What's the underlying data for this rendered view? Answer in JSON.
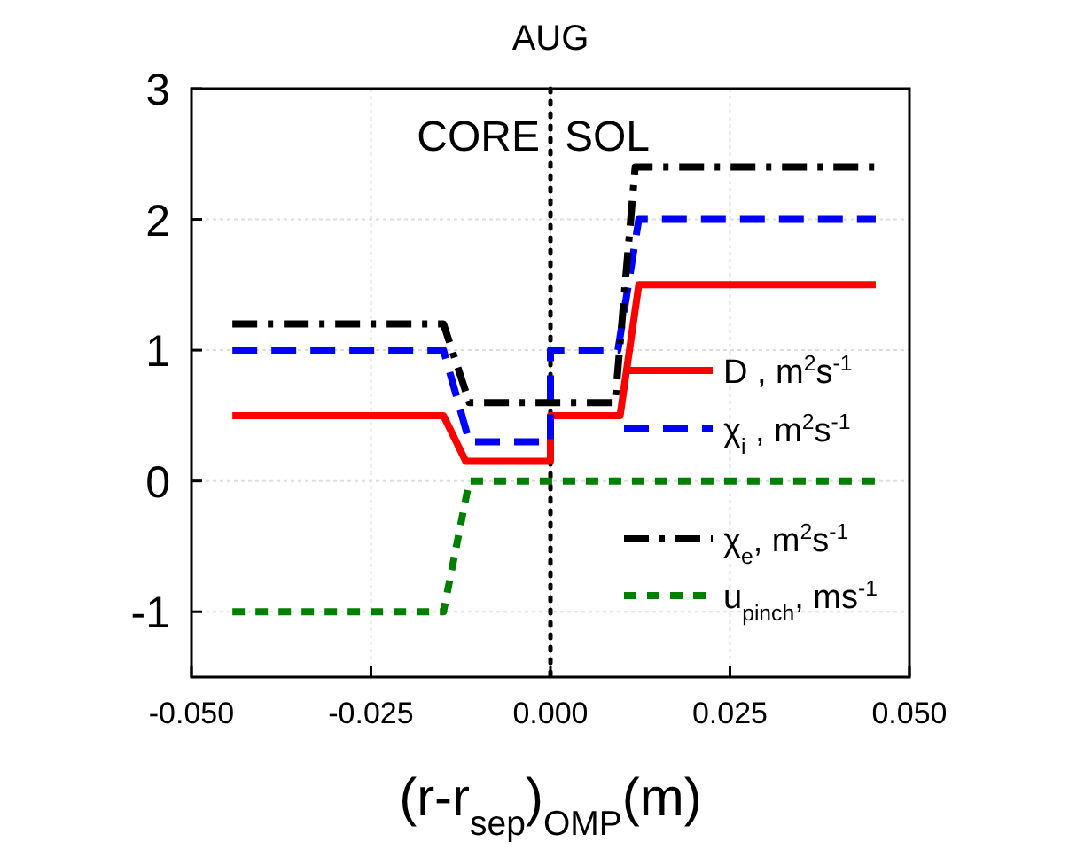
{
  "chart_data": {
    "type": "line",
    "title": "AUG",
    "xlabel": "(r-r$_{sep}$)$_{OMP}$(m)",
    "annotations": [
      "CORE",
      "SOL"
    ],
    "xlim": [
      -0.05,
      0.05
    ],
    "ylim": [
      -1.5,
      3
    ],
    "xticks": [
      {
        "value": -0.05,
        "label": "-0.050"
      },
      {
        "value": -0.025,
        "label": "-0.025"
      },
      {
        "value": 0,
        "label": "0.000"
      },
      {
        "value": 0.025,
        "label": "0.025"
      },
      {
        "value": 0.05,
        "label": "0.050"
      }
    ],
    "yticks": [
      -1,
      0,
      1,
      2,
      3
    ],
    "grid": true,
    "legend": "right",
    "ref_lines": [
      {
        "axis": "x",
        "value": 0,
        "color": "#000000",
        "line_style": "dotted"
      }
    ],
    "series": [
      {
        "name": "D , m$^{2}$s$^{-1}$",
        "color": "#ff0000",
        "line_style": "solid",
        "x": [
          -0.0443,
          -0.0149,
          -0.0118,
          0,
          0,
          0.0097,
          0.0123,
          0.0453
        ],
        "values": [
          0.5,
          0.5,
          0.15,
          0.15,
          0.5,
          0.5,
          1.5,
          1.5
        ]
      },
      {
        "name": "χ$_{i}$ , m$^{2}$s$^{-1}$",
        "color": "#0000ff",
        "line_style": "dashed",
        "x": [
          -0.0443,
          -0.0149,
          -0.0113,
          0,
          0,
          0.0094,
          0.0123,
          0.0453
        ],
        "values": [
          1,
          1,
          0.3,
          0.3,
          1,
          1,
          2,
          2
        ]
      },
      {
        "name": "χ$_{e}$, m$^{2}$s$^{-1}$",
        "color": "#000000",
        "line_style": "dashdot",
        "x": [
          -0.0443,
          -0.0149,
          -0.0113,
          0.009,
          0.0118,
          0.0453
        ],
        "values": [
          1.2,
          1.2,
          0.6,
          0.6,
          2.4,
          2.4
        ]
      },
      {
        "name": "u$_{pinch}$, ms$^{-1}$",
        "color": "#008000",
        "line_style": "shortdash",
        "x": [
          -0.0443,
          -0.0149,
          -0.0113,
          0.0453
        ],
        "values": [
          -1,
          -1,
          0,
          0
        ]
      }
    ]
  }
}
